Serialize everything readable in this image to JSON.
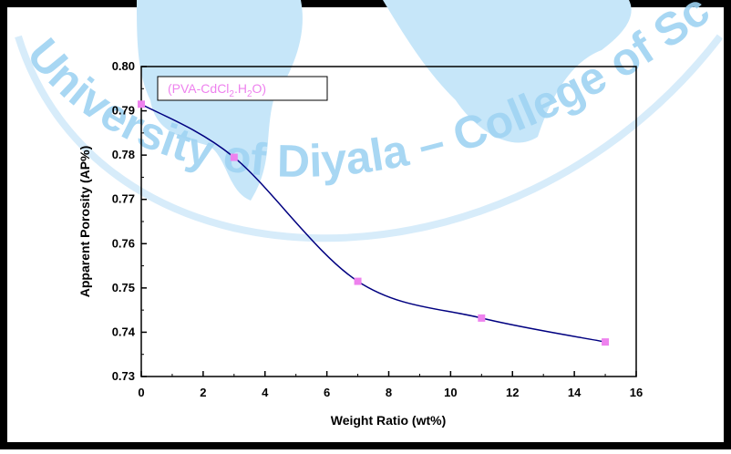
{
  "chart_data": {
    "type": "scatter",
    "title": "",
    "xlabel": "Weight Ratio (wt%)",
    "ylabel": "Apparent Porosity  (AP%)",
    "xlim": [
      0,
      16
    ],
    "ylim": [
      0.73,
      0.8
    ],
    "x_ticks": [
      0,
      2,
      4,
      6,
      8,
      10,
      12,
      14,
      16
    ],
    "x_tick_labels": [
      "0",
      "2",
      "4",
      "6",
      "8",
      "10",
      "12",
      "14",
      "16"
    ],
    "y_ticks": [
      0.73,
      0.74,
      0.75,
      0.76,
      0.77,
      0.78,
      0.79,
      0.8
    ],
    "y_tick_labels": [
      "0.73",
      "0.74",
      "0.75",
      "0.76",
      "0.77",
      "0.78",
      "0.79",
      "0.80"
    ],
    "grid": false,
    "legend": {
      "text_before": "(PVA-CdCl",
      "sub1": "2",
      "text_mid": ".H",
      "sub2": "2",
      "text_after": "O)",
      "placement": "top-left"
    },
    "series": [
      {
        "name": "(PVA-CdCl2.H2O)",
        "x": [
          0,
          3,
          7,
          11,
          15
        ],
        "y": [
          0.7915,
          0.7795,
          0.7515,
          0.7432,
          0.7378
        ],
        "marker_color": "#ee82ee",
        "line_color": "#000080"
      }
    ],
    "watermark": {
      "text": "University of Diyala – College of Science",
      "color": "#9fd3f2",
      "shape_color": "#bfe3f8"
    },
    "frame_color": "#000000"
  }
}
